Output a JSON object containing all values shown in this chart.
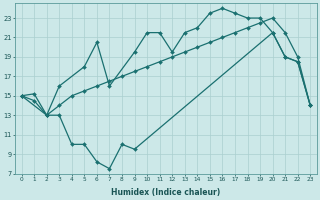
{
  "xlabel": "Humidex (Indice chaleur)",
  "bg_color": "#cce8e8",
  "grid_color": "#aacfcf",
  "line_color": "#1a7070",
  "xlim": [
    -0.5,
    23.5
  ],
  "ylim": [
    7,
    24.5
  ],
  "xticks": [
    0,
    1,
    2,
    3,
    4,
    5,
    6,
    7,
    8,
    9,
    10,
    11,
    12,
    13,
    14,
    15,
    16,
    17,
    18,
    19,
    20,
    21,
    22,
    23
  ],
  "yticks": [
    7,
    9,
    11,
    13,
    15,
    17,
    19,
    21,
    23
  ],
  "line1_x": [
    0,
    1,
    2,
    3,
    4,
    5,
    6,
    7,
    8,
    9,
    20,
    21,
    22,
    23
  ],
  "line1_y": [
    15,
    14.5,
    13,
    13,
    10,
    10,
    8.2,
    7.5,
    10,
    9.5,
    21.5,
    19.0,
    18.5,
    14.0
  ],
  "line2_x": [
    0,
    2,
    3,
    5,
    6,
    7,
    9,
    10,
    11,
    12,
    13,
    14,
    15,
    16,
    17,
    18,
    19,
    20,
    21,
    22,
    23
  ],
  "line2_y": [
    15,
    13,
    16,
    18,
    20.5,
    16,
    19.5,
    21.5,
    21.5,
    19.5,
    21.5,
    22.0,
    23.5,
    24.0,
    23.5,
    23.0,
    23.0,
    21.5,
    19.0,
    18.5,
    14.0
  ],
  "line3_x": [
    0,
    1,
    2,
    3,
    4,
    5,
    6,
    7,
    8,
    9,
    10,
    11,
    12,
    13,
    14,
    15,
    16,
    17,
    18,
    19,
    20,
    21,
    22,
    23
  ],
  "line3_y": [
    15,
    15.2,
    13.0,
    14.0,
    15.0,
    15.5,
    16.0,
    16.5,
    17.0,
    17.5,
    18.0,
    18.5,
    19.0,
    19.5,
    20.0,
    20.5,
    21.0,
    21.5,
    22.0,
    22.5,
    23.0,
    21.5,
    19.0,
    14.0
  ]
}
